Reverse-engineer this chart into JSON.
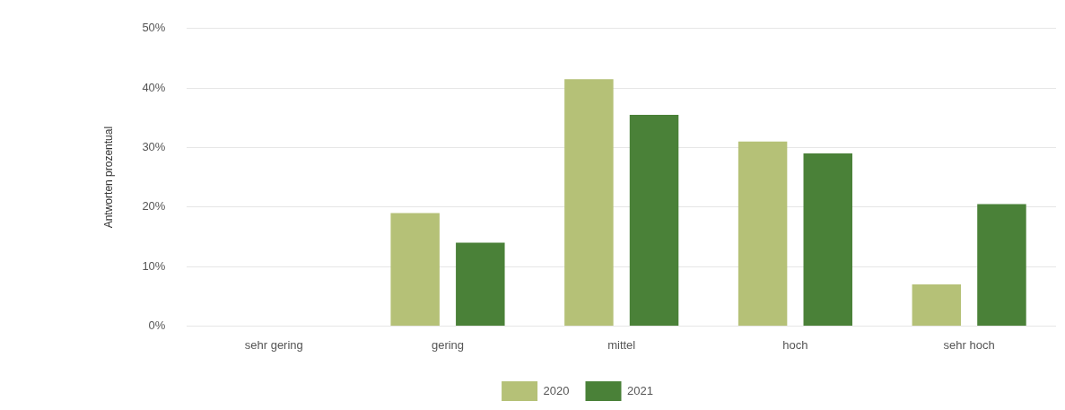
{
  "chart_data": {
    "type": "bar",
    "ylabel": "Antworten prozentual",
    "categories": [
      "sehr gering",
      "gering",
      "mittel",
      "hoch",
      "sehr hoch"
    ],
    "series": [
      {
        "name": "2020",
        "color": "#b5c177",
        "values": [
          0,
          19,
          41.5,
          31,
          7
        ]
      },
      {
        "name": "2021",
        "color": "#4a8138",
        "values": [
          0,
          14,
          35.5,
          29,
          20.5
        ]
      }
    ],
    "ylim": [
      0,
      50
    ],
    "yticks": [
      {
        "value": 0,
        "label": "0%"
      },
      {
        "value": 10,
        "label": "10%"
      },
      {
        "value": 20,
        "label": "20%"
      },
      {
        "value": 30,
        "label": "30%"
      },
      {
        "value": 40,
        "label": "40%"
      },
      {
        "value": 50,
        "label": "50%"
      }
    ],
    "grid": "y",
    "legend": "bottom"
  }
}
